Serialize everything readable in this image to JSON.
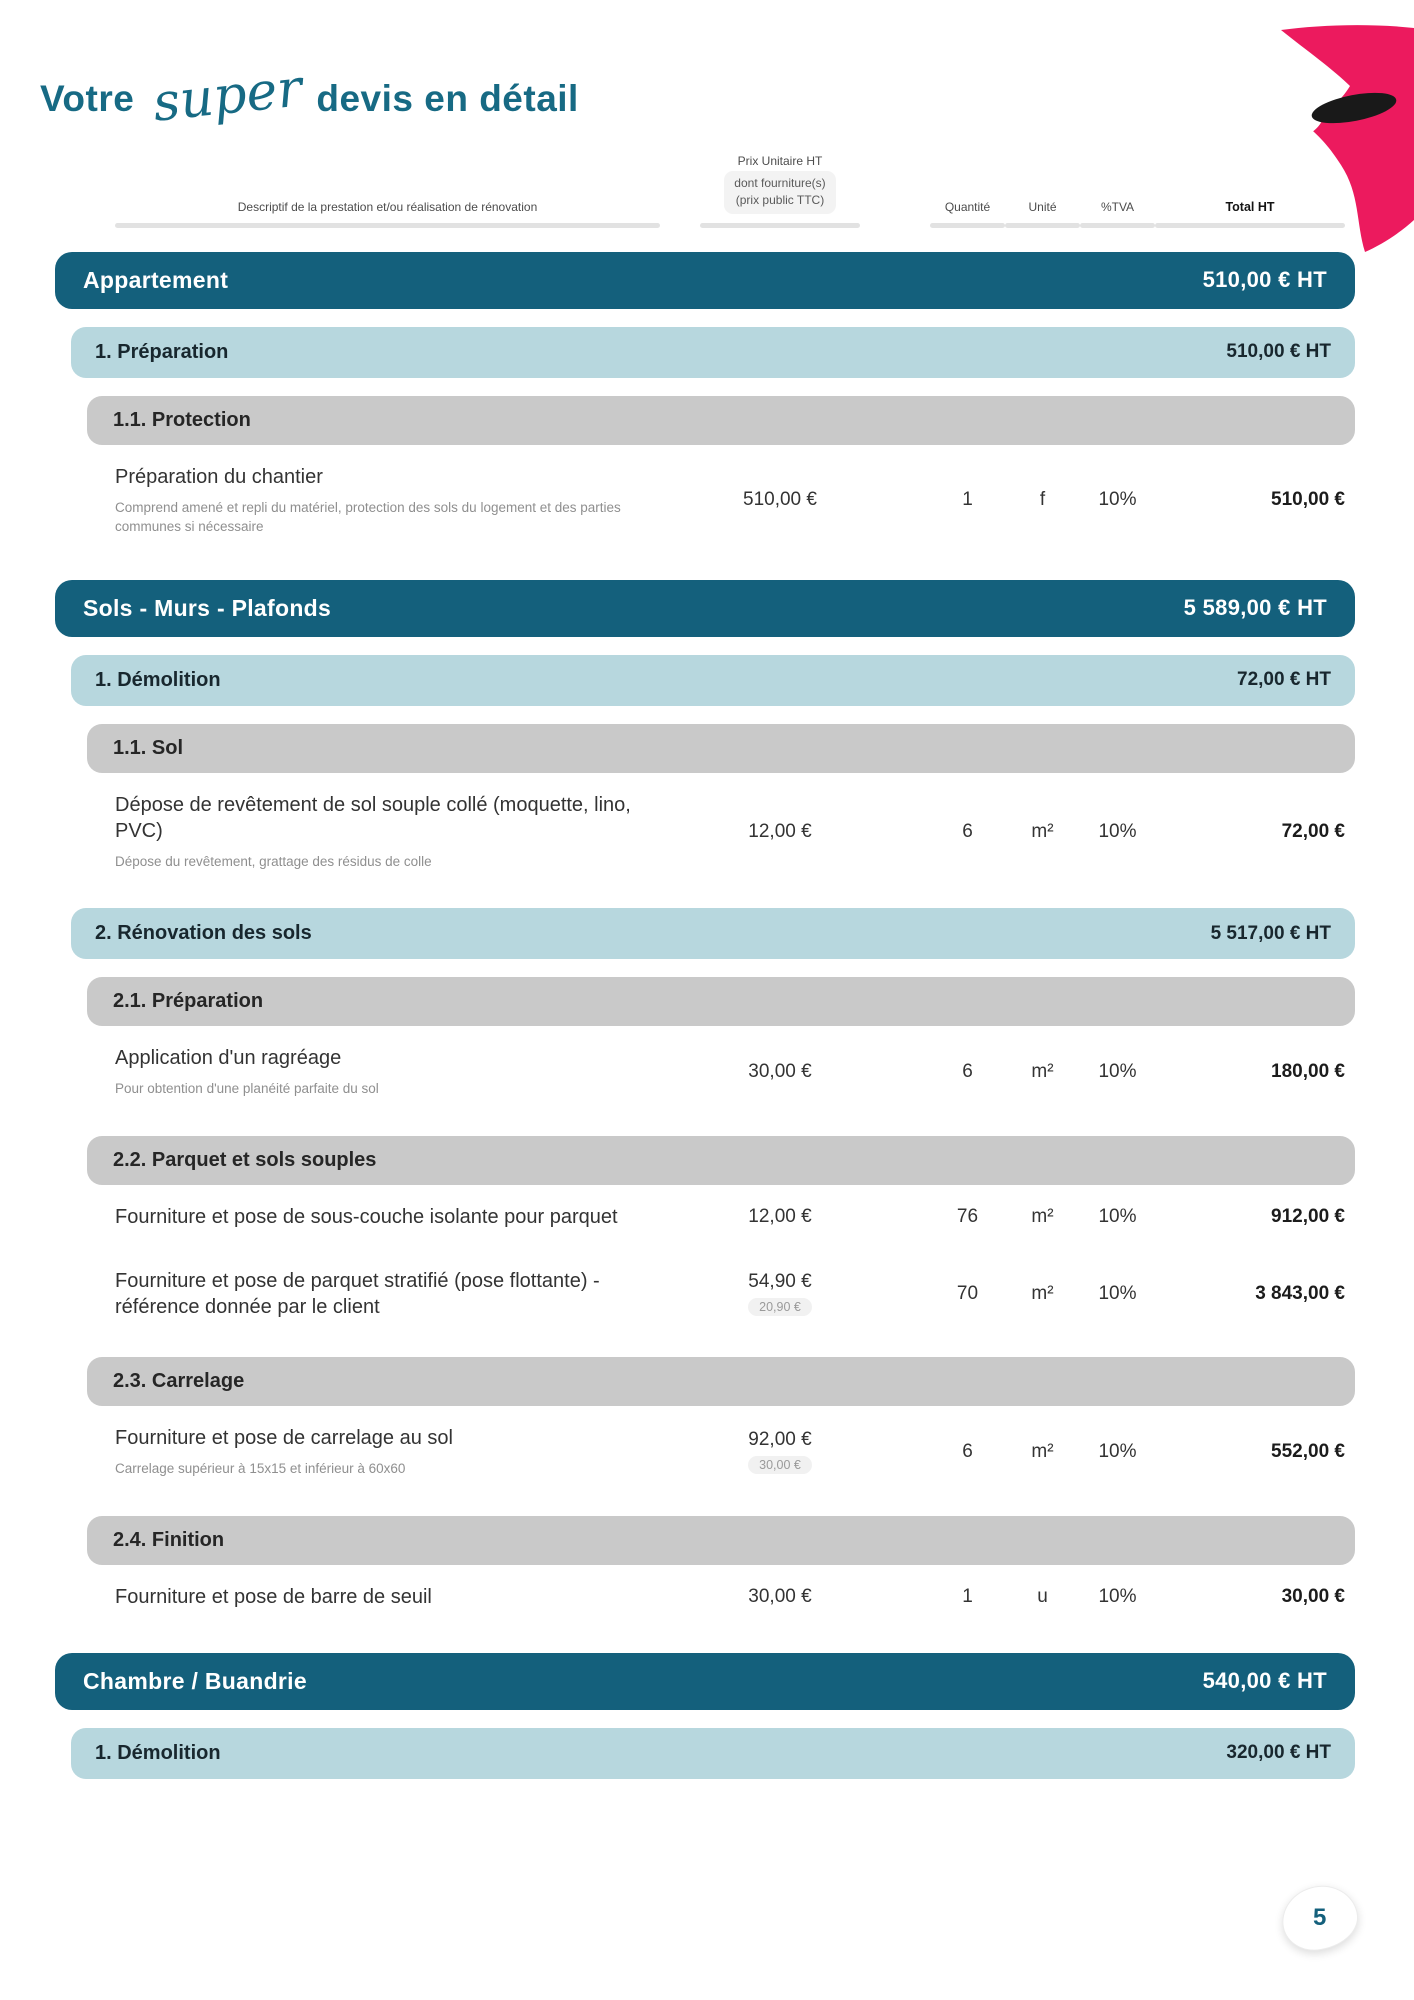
{
  "page": {
    "title_prefix": "Votre",
    "title_script": "super",
    "title_suffix": "devis en détail",
    "page_number": "5"
  },
  "colors": {
    "teal_dark": "#14607c",
    "teal_title": "#176a84",
    "light_blue": "#b7d7de",
    "gray_band": "#c9c9c9",
    "pink_logo": "#ec1a5e",
    "desc_gray": "#8f8f8f"
  },
  "table_header": {
    "description": "Descriptif de la prestation et/ou réalisation de rénovation",
    "unit_price_line1": "Prix Unitaire HT",
    "unit_price_line2": "dont fourniture(s)",
    "unit_price_line3": "(prix public TTC)",
    "quantity": "Quantité",
    "unit": "Unité",
    "vat": "%TVA",
    "total": "Total HT"
  },
  "sections": [
    {
      "title": "Appartement",
      "total": "510,00 € HT",
      "groups": [
        {
          "label": "1. Préparation",
          "total": "510,00 € HT",
          "subgroups": [
            {
              "label": "1.1. Protection",
              "items": [
                {
                  "name": "Préparation du chantier",
                  "desc": "Comprend amené et repli du matériel, protection des sols du logement et des parties communes si nécessaire",
                  "unit_price": "510,00 €",
                  "sub_price": "",
                  "qty": "1",
                  "unit": "f",
                  "tva": "10%",
                  "total": "510,00 €"
                }
              ]
            }
          ]
        }
      ]
    },
    {
      "title": "Sols - Murs - Plafonds",
      "total": "5 589,00 € HT",
      "groups": [
        {
          "label": "1. Démolition",
          "total": "72,00 € HT",
          "subgroups": [
            {
              "label": "1.1. Sol",
              "items": [
                {
                  "name": "Dépose de revêtement de sol souple collé (moquette, lino, PVC)",
                  "desc": "Dépose du revêtement, grattage des résidus de colle",
                  "unit_price": "12,00 €",
                  "sub_price": "",
                  "qty": "6",
                  "unit": "m²",
                  "tva": "10%",
                  "total": "72,00 €"
                }
              ]
            }
          ]
        },
        {
          "label": "2. Rénovation des sols",
          "total": "5 517,00 € HT",
          "subgroups": [
            {
              "label": "2.1. Préparation",
              "items": [
                {
                  "name": "Application d'un ragréage",
                  "desc": "Pour obtention d'une planéité parfaite du sol",
                  "unit_price": "30,00 €",
                  "sub_price": "",
                  "qty": "6",
                  "unit": "m²",
                  "tva": "10%",
                  "total": "180,00 €"
                }
              ]
            },
            {
              "label": "2.2. Parquet et sols souples",
              "items": [
                {
                  "name": "Fourniture et pose de sous-couche isolante pour parquet",
                  "desc": "",
                  "unit_price": "12,00 €",
                  "sub_price": "",
                  "qty": "76",
                  "unit": "m²",
                  "tva": "10%",
                  "total": "912,00 €"
                },
                {
                  "name": "Fourniture et pose de parquet stratifié (pose flottante) - référence donnée par le client",
                  "desc": "",
                  "unit_price": "54,90 €",
                  "sub_price": "20,90 €",
                  "qty": "70",
                  "unit": "m²",
                  "tva": "10%",
                  "total": "3 843,00 €"
                }
              ]
            },
            {
              "label": "2.3. Carrelage",
              "items": [
                {
                  "name": "Fourniture et pose de carrelage au sol",
                  "desc": "Carrelage supérieur à 15x15 et inférieur à 60x60",
                  "unit_price": "92,00 €",
                  "sub_price": "30,00 €",
                  "qty": "6",
                  "unit": "m²",
                  "tva": "10%",
                  "total": "552,00 €"
                }
              ]
            },
            {
              "label": "2.4. Finition",
              "items": [
                {
                  "name": "Fourniture et pose de barre de seuil",
                  "desc": "",
                  "unit_price": "30,00 €",
                  "sub_price": "",
                  "qty": "1",
                  "unit": "u",
                  "tva": "10%",
                  "total": "30,00 €"
                }
              ]
            }
          ]
        }
      ]
    },
    {
      "title": "Chambre / Buandrie",
      "total": "540,00 € HT",
      "groups": [
        {
          "label": "1. Démolition",
          "total": "320,00 € HT",
          "subgroups": []
        }
      ]
    }
  ]
}
